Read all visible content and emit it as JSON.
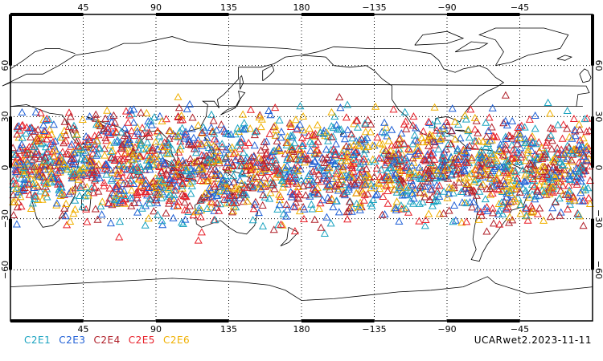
{
  "map": {
    "projection": "cylindrical equidistant",
    "center_longitude": 180,
    "lon_range": [
      0,
      360
    ],
    "lat_range": [
      -90,
      90
    ],
    "grid": "dotted",
    "coastlines": true
  },
  "axes": {
    "top_lon_labels": [
      "45",
      "90",
      "135",
      "180",
      "−135",
      "−90",
      "−45"
    ],
    "bottom_lon_labels": [
      "45",
      "90",
      "135",
      "180",
      "−135",
      "−90",
      "−45"
    ],
    "lon_values": [
      45,
      90,
      135,
      180,
      225,
      270,
      315
    ],
    "left_lat_labels": [
      "60",
      "30",
      "0",
      "−30",
      "−60"
    ],
    "right_lat_labels": [
      "60",
      "30",
      "0",
      "−30",
      "−60"
    ],
    "lat_values": [
      60,
      30,
      0,
      -30,
      -60
    ]
  },
  "legend": {
    "items": [
      {
        "label": "C2E1",
        "color": "#1aa3c0"
      },
      {
        "label": "C2E3",
        "color": "#1f5fd6"
      },
      {
        "label": "C2E4",
        "color": "#b0202a"
      },
      {
        "label": "C2E5",
        "color": "#e8202a"
      },
      {
        "label": "C2E6",
        "color": "#f0b000"
      }
    ]
  },
  "dataset_label": "UCARwet2.2023-11-11",
  "observations": {
    "marker": "open-triangle",
    "lat_range": [
      -45,
      45
    ],
    "approx_count": 2600
  }
}
